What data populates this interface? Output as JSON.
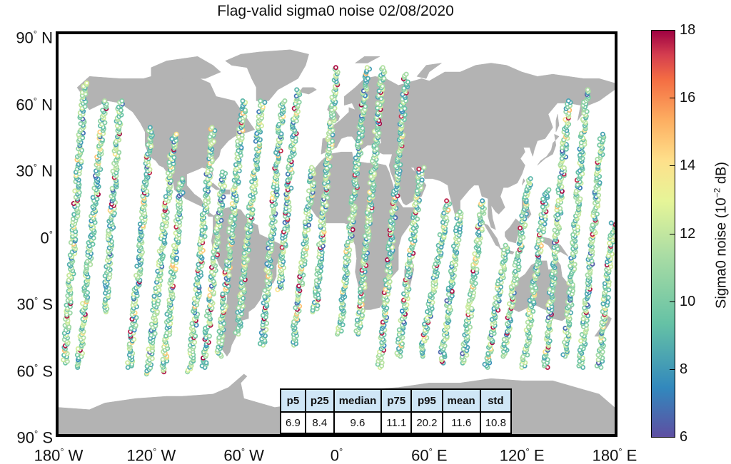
{
  "title": "Flag-valid sigma0 noise 02/08/2020",
  "lat_labels": [
    {
      "text": "90",
      "hemi": "N",
      "lat": 90
    },
    {
      "text": "60",
      "hemi": "N",
      "lat": 60
    },
    {
      "text": "30",
      "hemi": "N",
      "lat": 30
    },
    {
      "text": "0",
      "hemi": "",
      "lat": 0
    },
    {
      "text": "30",
      "hemi": "S",
      "lat": -30
    },
    {
      "text": "60",
      "hemi": "S",
      "lat": -60
    },
    {
      "text": "90",
      "hemi": "S",
      "lat": -90
    }
  ],
  "lon_labels": [
    {
      "text": "180",
      "hemi": "W",
      "lon": -180
    },
    {
      "text": "120",
      "hemi": "W",
      "lon": -120
    },
    {
      "text": "60",
      "hemi": "W",
      "lon": -60
    },
    {
      "text": "0",
      "hemi": "",
      "lon": 0
    },
    {
      "text": "60",
      "hemi": "E",
      "lon": 60
    },
    {
      "text": "120",
      "hemi": "E",
      "lon": 120
    },
    {
      "text": "180",
      "hemi": "E",
      "lon": 180
    }
  ],
  "colorbar": {
    "label": "Sigma0 noise (10",
    "label_exp": "−2",
    "label_unit": " dB)",
    "min": 6,
    "max": 18,
    "ticks": [
      "6",
      "8",
      "10",
      "12",
      "14",
      "16",
      "18"
    ]
  },
  "stats": {
    "headers": [
      "p5",
      "p25",
      "median",
      "p75",
      "p95",
      "mean",
      "std"
    ],
    "values": [
      "6.9",
      "8.4",
      "9.6",
      "11.1",
      "20.2",
      "11.6",
      "10.8"
    ]
  },
  "land_color": "#b3b3b3",
  "tracks": [
    {
      "lon0": -176,
      "lat0": -58,
      "lon1": -163,
      "lat1": 68
    },
    {
      "lon0": -167,
      "lat0": -60,
      "lon1": -150,
      "lat1": 60
    },
    {
      "lon0": -150,
      "lat0": -35,
      "lon1": -140,
      "lat1": 60
    },
    {
      "lon0": -134,
      "lat0": -60,
      "lon1": -120,
      "lat1": 48
    },
    {
      "lon0": -122,
      "lat0": -63,
      "lon1": -105,
      "lat1": 45
    },
    {
      "lon0": -112,
      "lat0": -62,
      "lon1": -100,
      "lat1": 25
    },
    {
      "lon0": -95,
      "lat0": -62,
      "lon1": -80,
      "lat1": 48
    },
    {
      "lon0": -86,
      "lat0": -60,
      "lon1": -73,
      "lat1": 28
    },
    {
      "lon0": -76,
      "lat0": -55,
      "lon1": -60,
      "lat1": 60
    },
    {
      "lon0": -64,
      "lat0": -45,
      "lon1": -48,
      "lat1": 60
    },
    {
      "lon0": -48,
      "lat0": -50,
      "lon1": -35,
      "lat1": 60
    },
    {
      "lon0": -37,
      "lat0": -25,
      "lon1": -25,
      "lat1": 65
    },
    {
      "lon0": -28,
      "lat0": -50,
      "lon1": -15,
      "lat1": 30
    },
    {
      "lon0": -14,
      "lat0": -35,
      "lon1": 0,
      "lat1": 75
    },
    {
      "lon0": 2,
      "lat0": -45,
      "lon1": 20,
      "lat1": 75
    },
    {
      "lon0": 14,
      "lat0": -45,
      "lon1": 30,
      "lat1": 75
    },
    {
      "lon0": 28,
      "lat0": -60,
      "lon1": 45,
      "lat1": 72
    },
    {
      "lon0": 40,
      "lat0": -55,
      "lon1": 55,
      "lat1": 30
    },
    {
      "lon0": 55,
      "lat0": -55,
      "lon1": 72,
      "lat1": 15
    },
    {
      "lon0": 68,
      "lat0": -58,
      "lon1": 80,
      "lat1": 10
    },
    {
      "lon0": 82,
      "lat0": -58,
      "lon1": 95,
      "lat1": 15
    },
    {
      "lon0": 97,
      "lat0": -60,
      "lon1": 110,
      "lat1": -5
    },
    {
      "lon0": 108,
      "lat0": -55,
      "lon1": 125,
      "lat1": 25
    },
    {
      "lon0": 121,
      "lat0": -60,
      "lon1": 136,
      "lat1": 20
    },
    {
      "lon0": 135,
      "lat0": -60,
      "lon1": 150,
      "lat1": 60
    },
    {
      "lon0": 148,
      "lat0": -55,
      "lon1": 162,
      "lat1": 65
    },
    {
      "lon0": 158,
      "lat0": -60,
      "lon1": 172,
      "lat1": 45
    },
    {
      "lon0": 170,
      "lat0": -60,
      "lon1": 179,
      "lat1": 5
    }
  ]
}
